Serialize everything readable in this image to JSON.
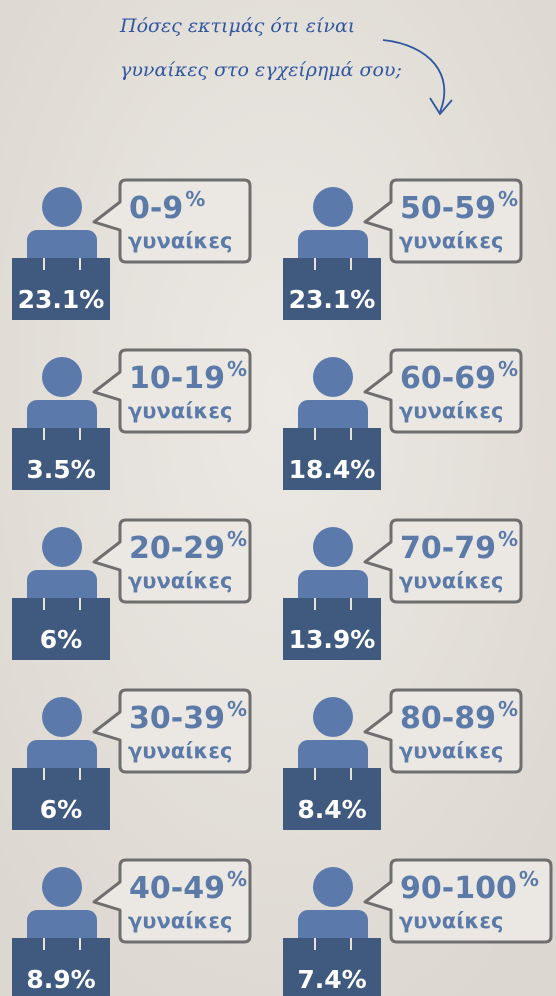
{
  "title": {
    "line1": "Πόσες εκτιμάς ότι είναι",
    "line2": "γυναίκες στο εγχείρημά σου;"
  },
  "items": [
    {
      "range": "0-9",
      "unit": "%",
      "label": "γυναίκες",
      "value": "23.1%"
    },
    {
      "range": "50-59",
      "unit": "%",
      "label": "γυναίκες",
      "value": "23.1%"
    },
    {
      "range": "10-19",
      "unit": "%",
      "label": "γυναίκες",
      "value": "3.5%"
    },
    {
      "range": "60-69",
      "unit": "%",
      "label": "γυναίκες",
      "value": "18.4%"
    },
    {
      "range": "20-29",
      "unit": "%",
      "label": "γυναίκες",
      "value": "6%"
    },
    {
      "range": "70-79",
      "unit": "%",
      "label": "γυναίκες",
      "value": "13.9%"
    },
    {
      "range": "30-39",
      "unit": "%",
      "label": "γυναίκες",
      "value": "6%"
    },
    {
      "range": "80-89",
      "unit": "%",
      "label": "γυναίκες",
      "value": "8.4%"
    },
    {
      "range": "40-49",
      "unit": "%",
      "label": "γυναίκες",
      "value": "8.9%"
    },
    {
      "range": "90-100",
      "unit": "%",
      "label": "γυναίκες",
      "value": "7.4%"
    }
  ]
}
